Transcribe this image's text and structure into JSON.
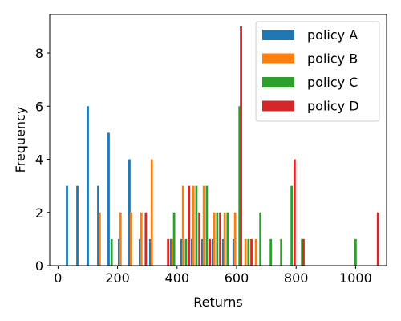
{
  "chart_data": {
    "type": "bar",
    "xlabel": "Returns",
    "ylabel": "Frequency",
    "xlim": [
      -28,
      1104
    ],
    "ylim": [
      0,
      9.45
    ],
    "xticks": [
      0,
      200,
      400,
      600,
      800,
      1000
    ],
    "yticks": [
      0,
      2,
      4,
      6,
      8
    ],
    "grid": false,
    "legend_position": "top-right",
    "series": [
      {
        "name": "policy A",
        "color": "#1f77b4",
        "points": [
          {
            "x": 30,
            "y": 3
          },
          {
            "x": 65,
            "y": 3
          },
          {
            "x": 100,
            "y": 6
          },
          {
            "x": 135,
            "y": 3
          },
          {
            "x": 170,
            "y": 5
          },
          {
            "x": 205,
            "y": 1
          },
          {
            "x": 240,
            "y": 4
          },
          {
            "x": 275,
            "y": 1
          },
          {
            "x": 310,
            "y": 1
          },
          {
            "x": 380,
            "y": 1
          },
          {
            "x": 415,
            "y": 1
          },
          {
            "x": 450,
            "y": 1
          },
          {
            "x": 485,
            "y": 1
          },
          {
            "x": 520,
            "y": 1
          },
          {
            "x": 555,
            "y": 1
          },
          {
            "x": 590,
            "y": 1
          }
        ]
      },
      {
        "name": "policy B",
        "color": "#ff7f0e",
        "points": [
          {
            "x": 140,
            "y": 2
          },
          {
            "x": 210,
            "y": 2
          },
          {
            "x": 245,
            "y": 2
          },
          {
            "x": 280,
            "y": 2
          },
          {
            "x": 315,
            "y": 4
          },
          {
            "x": 385,
            "y": 1
          },
          {
            "x": 420,
            "y": 3
          },
          {
            "x": 455,
            "y": 3
          },
          {
            "x": 490,
            "y": 3
          },
          {
            "x": 525,
            "y": 2
          },
          {
            "x": 560,
            "y": 2
          },
          {
            "x": 595,
            "y": 2
          },
          {
            "x": 630,
            "y": 1
          },
          {
            "x": 665,
            "y": 1
          }
        ]
      },
      {
        "name": "policy C",
        "color": "#2ca02c",
        "points": [
          {
            "x": 180,
            "y": 1
          },
          {
            "x": 390,
            "y": 2
          },
          {
            "x": 430,
            "y": 1
          },
          {
            "x": 465,
            "y": 3
          },
          {
            "x": 500,
            "y": 3
          },
          {
            "x": 535,
            "y": 2
          },
          {
            "x": 570,
            "y": 2
          },
          {
            "x": 610,
            "y": 6
          },
          {
            "x": 640,
            "y": 1
          },
          {
            "x": 680,
            "y": 2
          },
          {
            "x": 715,
            "y": 1
          },
          {
            "x": 750,
            "y": 1
          },
          {
            "x": 785,
            "y": 3
          },
          {
            "x": 820,
            "y": 1
          },
          {
            "x": 1000,
            "y": 1
          }
        ]
      },
      {
        "name": "policy D",
        "color": "#d62728",
        "points": [
          {
            "x": 295,
            "y": 2
          },
          {
            "x": 370,
            "y": 1
          },
          {
            "x": 440,
            "y": 3
          },
          {
            "x": 475,
            "y": 2
          },
          {
            "x": 510,
            "y": 1
          },
          {
            "x": 545,
            "y": 2
          },
          {
            "x": 615,
            "y": 9
          },
          {
            "x": 650,
            "y": 1
          },
          {
            "x": 795,
            "y": 4
          },
          {
            "x": 825,
            "y": 1
          },
          {
            "x": 1075,
            "y": 2
          }
        ]
      }
    ]
  }
}
